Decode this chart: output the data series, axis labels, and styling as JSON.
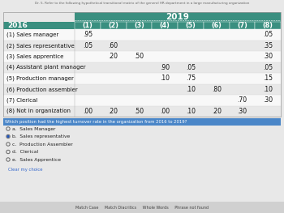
{
  "title_above": "Dr. 5. Refer to the following hypothetical transitional matrix of the general HR department in a large manufacturing organization",
  "header_2019": "2019",
  "col_2016": "2016",
  "col_headers": [
    "(1)",
    "(2)",
    "(3)",
    "(4)",
    "(5)",
    "(6)",
    "(7)",
    "(8)"
  ],
  "row_labels": [
    "(1) Sales manager",
    "(2) Sales representative",
    "(3) Sales apprentice",
    "(4) Assistant plant manager",
    "(5) Production manager",
    "(6) Production assembler",
    "(7) Clerical",
    "(8) Not in organization"
  ],
  "matrix": [
    [
      ".95",
      "",
      "",
      "",
      "",
      "",
      "",
      ".05"
    ],
    [
      ".05",
      ".60",
      "",
      "",
      "",
      "",
      "",
      ".35"
    ],
    [
      "",
      ".20",
      ".50",
      "",
      "",
      "",
      "",
      ".30"
    ],
    [
      "",
      "",
      "",
      ".90",
      ".05",
      "",
      "",
      ".05"
    ],
    [
      "",
      "",
      "",
      ".10",
      ".75",
      "",
      "",
      ".15"
    ],
    [
      "",
      "",
      "",
      "",
      ".10",
      ".80",
      "",
      ".10"
    ],
    [
      "",
      "",
      "",
      "",
      "",
      "",
      ".70",
      ".30"
    ],
    [
      ".00",
      ".20",
      ".50",
      ".00",
      ".10",
      ".20",
      ".30",
      ""
    ]
  ],
  "question_text": "Which position had the highest turnover rate in the organization from 2016 to 2019?",
  "options": [
    "a.  Sales Manager",
    "b.  Sales representative",
    "c.  Production Assembler",
    "d.  Clerical",
    "e.  Sales Apprentice"
  ],
  "selected_option": 1,
  "header_bg": "#3a8f80",
  "header_text": "#ffffff",
  "row_bg_even": "#e8e8e8",
  "row_bg_odd": "#f8f8f8",
  "label_bg": "#3a8f80",
  "label_text": "#ffffff",
  "table_border": "#bbbbbb",
  "question_highlight": "#4a86c8",
  "option_text_color": "#222222",
  "selected_color": "#2255bb",
  "above_text_color": "#666666",
  "figure_bg": "#e8e8e8"
}
